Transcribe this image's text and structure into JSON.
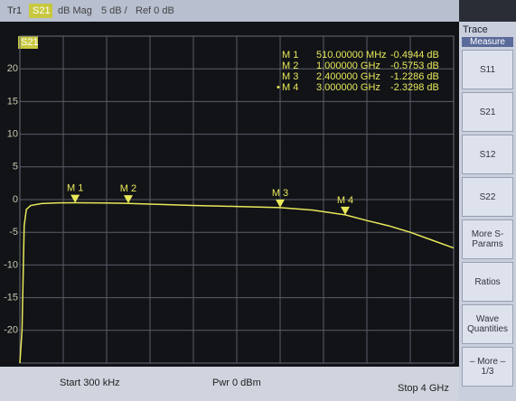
{
  "header": {
    "trace": "Tr1",
    "param": "S21",
    "format": "dB Mag",
    "scale": "5 dB /",
    "ref": "Ref 0 dB"
  },
  "chart_data": {
    "type": "line",
    "badge": "S21",
    "xlim": [
      0.0003,
      4
    ],
    "ylim": [
      -25,
      25
    ],
    "yticks": [
      20,
      15,
      10,
      5,
      0,
      -5,
      -10,
      -15,
      -20
    ],
    "grid": true,
    "series": [
      {
        "name": "S21",
        "color": "#e8e85a",
        "x": [
          0.0003,
          0.02,
          0.04,
          0.06,
          0.1,
          0.2,
          0.35,
          0.51,
          0.8,
          1.0,
          1.3,
          1.6,
          2.0,
          2.4,
          2.7,
          3.0,
          3.2,
          3.4,
          3.6,
          3.8,
          4.0
        ],
        "values": [
          -25,
          -20,
          -4,
          -1.5,
          -0.9,
          -0.6,
          -0.5,
          -0.49,
          -0.52,
          -0.58,
          -0.75,
          -0.9,
          -1.05,
          -1.23,
          -1.6,
          -2.33,
          -3.2,
          -4,
          -5,
          -6.2,
          -7.4
        ]
      }
    ],
    "markers": [
      {
        "label": "M 1",
        "active": "",
        "x": 0.51,
        "y": -0.4944,
        "stimulus": "510.00000 MHz",
        "response": "-0.4944 dB"
      },
      {
        "label": "M 2",
        "active": "",
        "x": 1.0,
        "y": -0.5753,
        "stimulus": "1.000000 GHz",
        "response": "-0.5753 dB"
      },
      {
        "label": "M 3",
        "active": "",
        "x": 2.4,
        "y": -1.2286,
        "stimulus": "2.400000 GHz",
        "response": "-1.2286 dB"
      },
      {
        "label": "M 4",
        "active": "•",
        "x": 3.0,
        "y": -2.3298,
        "stimulus": "3.000000 GHz",
        "response": "-2.3298 dB"
      }
    ]
  },
  "footer": {
    "start": "Start 300 kHz",
    "power": "Pwr 0 dBm",
    "stop": "Stop 4 GHz"
  },
  "softkeys": {
    "title": "Trace",
    "menu": "Measure",
    "keys": [
      "S11",
      "S21",
      "S12",
      "S22",
      "More S-Params",
      "Ratios",
      "Wave Quantities",
      "– More – 1/3"
    ]
  }
}
